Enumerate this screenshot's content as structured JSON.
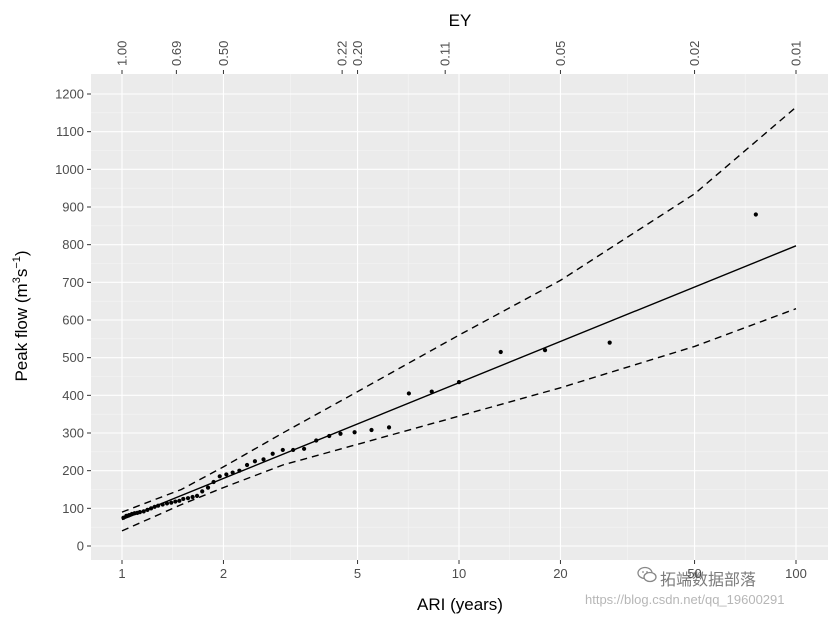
{
  "chart_data": {
    "type": "scatter",
    "xlabel": "ARI (years)",
    "ylabel_main": "Peak flow (m",
    "ylabel_sup1": "3",
    "ylabel_mid": "s",
    "ylabel_sup2": "−1",
    "ylabel_end": ")",
    "top_axis_title": "EY",
    "x_scale": "log",
    "xlim": [
      1,
      100
    ],
    "ylim": [
      0,
      1200
    ],
    "x_ticks": [
      {
        "value": 1,
        "label": "1"
      },
      {
        "value": 2,
        "label": "2"
      },
      {
        "value": 5,
        "label": "5"
      },
      {
        "value": 10,
        "label": "10"
      },
      {
        "value": 20,
        "label": "20"
      },
      {
        "value": 50,
        "label": "50"
      },
      {
        "value": 100,
        "label": "100"
      }
    ],
    "y_ticks": [
      0,
      100,
      200,
      300,
      400,
      500,
      600,
      700,
      800,
      900,
      1000,
      1100,
      1200
    ],
    "top_ticks": [
      {
        "ari": 1.0,
        "label": "1.00"
      },
      {
        "ari": 1.45,
        "label": "0.69"
      },
      {
        "ari": 2.0,
        "label": "0.50"
      },
      {
        "ari": 4.5,
        "label": "0.22"
      },
      {
        "ari": 5.0,
        "label": "0.20"
      },
      {
        "ari": 9.1,
        "label": "0.11"
      },
      {
        "ari": 20.0,
        "label": "0.05"
      },
      {
        "ari": 50.0,
        "label": "0.02"
      },
      {
        "ari": 100.0,
        "label": "0.01"
      }
    ],
    "grid": true,
    "series": [
      {
        "kind": "points",
        "color": "#000000",
        "x": [
          1.01,
          1.03,
          1.05,
          1.07,
          1.09,
          1.11,
          1.13,
          1.16,
          1.19,
          1.22,
          1.25,
          1.28,
          1.32,
          1.36,
          1.4,
          1.44,
          1.48,
          1.52,
          1.57,
          1.62,
          1.67,
          1.73,
          1.8,
          1.87,
          1.95,
          2.04,
          2.13,
          2.23,
          2.35,
          2.48,
          2.63,
          2.8,
          3.0,
          3.22,
          3.47,
          3.77,
          4.12,
          4.45,
          4.9,
          5.5,
          6.2,
          7.1,
          8.3,
          10.0,
          13.3,
          18.0,
          28.0,
          76.0
        ],
        "y": [
          75,
          80,
          82,
          85,
          87,
          88,
          90,
          92,
          96,
          100,
          104,
          107,
          110,
          113,
          115,
          118,
          120,
          125,
          127,
          130,
          133,
          145,
          155,
          170,
          185,
          190,
          195,
          200,
          215,
          225,
          230,
          245,
          255,
          255,
          258,
          280,
          292,
          298,
          302,
          308,
          315,
          405,
          410,
          435,
          515,
          520,
          540,
          880
        ]
      },
      {
        "kind": "fit-line",
        "style": "solid",
        "x": [
          1,
          100
        ],
        "y": [
          70,
          797
        ]
      },
      {
        "kind": "upper-bound",
        "style": "dashed",
        "x": [
          1,
          1.5,
          2,
          3,
          5,
          10,
          20,
          50,
          100
        ],
        "y": [
          90,
          150,
          210,
          300,
          410,
          560,
          705,
          935,
          1165
        ]
      },
      {
        "kind": "lower-bound",
        "style": "dashed",
        "x": [
          1,
          1.5,
          2,
          3,
          5,
          10,
          20,
          50,
          100
        ],
        "y": [
          40,
          110,
          155,
          215,
          270,
          345,
          420,
          530,
          630
        ]
      }
    ]
  },
  "watermark": {
    "line1": "拓端数据部落",
    "line2": "https://blog.csdn.net/qq_19600291",
    "icon": "wechat-icon"
  },
  "colors": {
    "panel_background": "#ebebeb",
    "grid_major": "#ffffff",
    "grid_minor": "#f5f5f5",
    "tick_text": "#4d4d4d",
    "axis_title": "#000000"
  }
}
